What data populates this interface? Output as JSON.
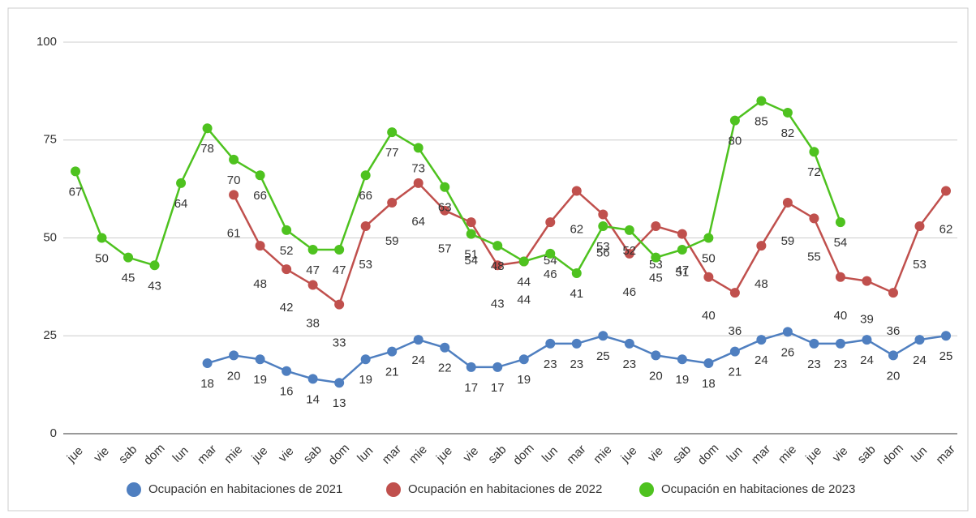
{
  "chart_data": {
    "type": "line",
    "categories": [
      "jue",
      "vie",
      "sab",
      "dom",
      "lun",
      "mar",
      "mie",
      "jue",
      "vie",
      "sab",
      "dom",
      "lun",
      "mar",
      "mie",
      "jue",
      "vie",
      "sab",
      "dom",
      "lun",
      "mar",
      "mie",
      "jue",
      "vie",
      "sab",
      "dom",
      "lun",
      "mar",
      "mie",
      "jue",
      "vie",
      "sab",
      "dom",
      "lun",
      "mar"
    ],
    "series": [
      {
        "name": "Ocupación en habitaciones de 2021",
        "color": "#4f7fc0",
        "values": [
          null,
          null,
          null,
          null,
          null,
          18,
          20,
          19,
          16,
          14,
          13,
          19,
          21,
          24,
          22,
          17,
          17,
          19,
          23,
          23,
          25,
          23,
          20,
          19,
          18,
          21,
          24,
          26,
          23,
          23,
          24,
          20,
          24,
          25
        ]
      },
      {
        "name": "Ocupación en habitaciones de 2022",
        "color": "#c0504d",
        "values": [
          null,
          null,
          null,
          null,
          null,
          null,
          61,
          48,
          42,
          38,
          33,
          53,
          59,
          64,
          57,
          54,
          43,
          44,
          54,
          62,
          56,
          46,
          53,
          51,
          40,
          36,
          48,
          59,
          55,
          40,
          39,
          36,
          53,
          62
        ]
      },
      {
        "name": "Ocupación en habitaciones de 2023",
        "color": "#4ec21f",
        "values": [
          67,
          50,
          45,
          43,
          64,
          78,
          70,
          66,
          52,
          47,
          47,
          66,
          77,
          73,
          63,
          51,
          48,
          44,
          46,
          41,
          53,
          52,
          45,
          47,
          50,
          80,
          85,
          82,
          72,
          54,
          null,
          null,
          null,
          null
        ]
      }
    ],
    "ylim": [
      0,
      100
    ],
    "yticks": [
      0,
      25,
      50,
      75,
      100
    ],
    "grid": true,
    "legend": "bottom"
  }
}
